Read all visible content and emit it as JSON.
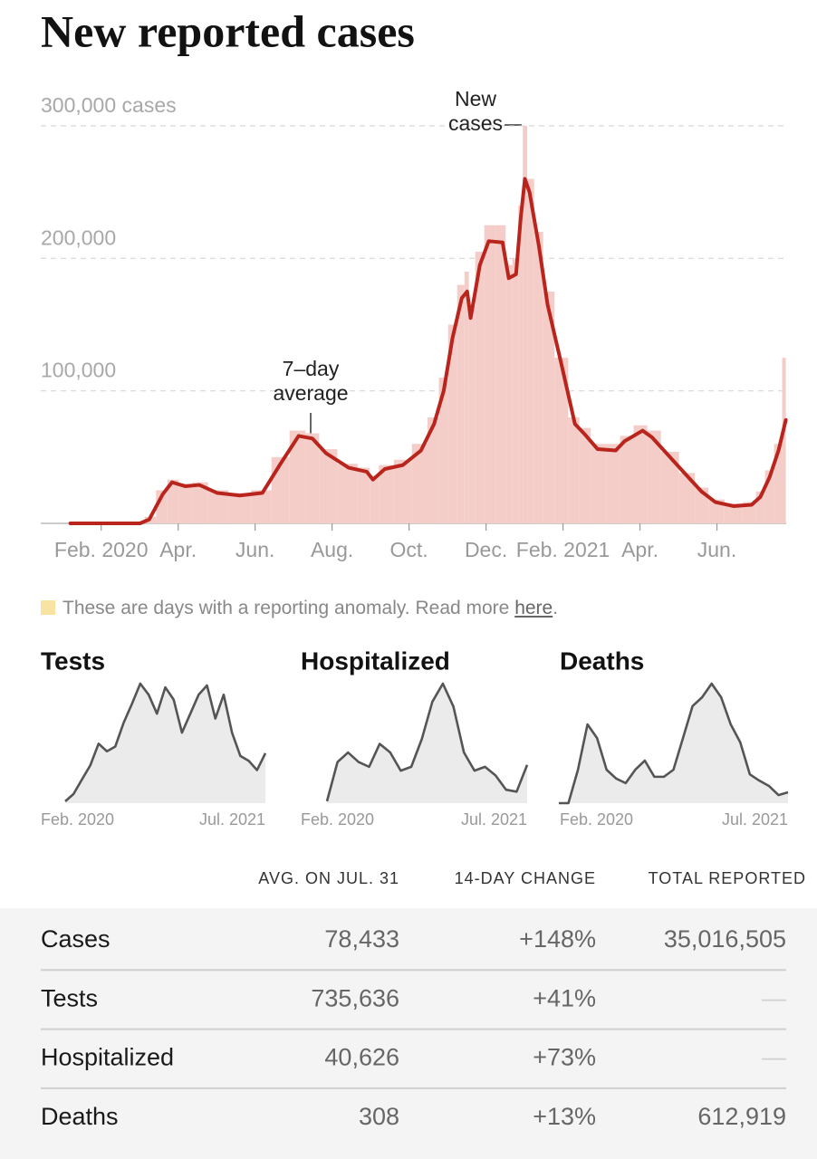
{
  "chart_data": [
    {
      "type": "combo",
      "title": "New reported cases",
      "x": [
        0.2,
        2.01,
        2.25,
        2.6,
        2.84,
        3.19,
        3.55,
        4.01,
        4.6,
        5.19,
        5.66,
        6.13,
        6.49,
        6.84,
        7.43,
        7.9,
        8.06,
        8.37,
        8.84,
        9.31,
        9.65,
        9.9,
        10.13,
        10.37,
        10.51,
        10.6,
        10.84,
        11.07,
        11.43,
        11.59,
        11.78,
        11.9,
        12.01,
        12.13,
        12.37,
        12.6,
        12.96,
        13.31,
        13.54,
        13.9,
        14.37,
        14.6,
        15.07,
        15.31,
        15.78,
        16.25,
        16.6,
        16.96,
        17.43,
        17.9,
        18.13,
        18.37,
        18.6,
        18.79
      ],
      "series": [
        {
          "name": "New cases",
          "type": "bar",
          "color": "#f4cdc9",
          "values": [
            0,
            0,
            5000,
            25000,
            33000,
            30000,
            31000,
            25000,
            23000,
            25000,
            50000,
            70000,
            68000,
            56000,
            45000,
            42000,
            36000,
            44000,
            48000,
            60000,
            80000,
            110000,
            150000,
            180000,
            190000,
            165000,
            205000,
            225000,
            225000,
            195000,
            200000,
            240000,
            300000,
            260000,
            220000,
            175000,
            125000,
            80000,
            72000,
            60000,
            60000,
            66000,
            74000,
            70000,
            54000,
            38000,
            27000,
            18000,
            15000,
            16000,
            24000,
            40000,
            60000,
            125000
          ]
        },
        {
          "name": "7–day average",
          "type": "line",
          "color": "#b9251c",
          "values": [
            0,
            0,
            3000,
            22000,
            31000,
            28000,
            29000,
            23000,
            21000,
            23000,
            45000,
            66000,
            64000,
            53000,
            42000,
            39000,
            33000,
            41000,
            44000,
            55000,
            75000,
            100000,
            140000,
            170000,
            175000,
            155000,
            195000,
            213000,
            212000,
            185000,
            188000,
            230000,
            260000,
            250000,
            210000,
            165000,
            120000,
            75000,
            68000,
            56000,
            55000,
            62000,
            70000,
            65000,
            50000,
            35000,
            24000,
            16000,
            13000,
            14000,
            20000,
            35000,
            55000,
            78000
          ]
        }
      ],
      "xlim": [
        -0.57,
        18.8
      ],
      "xticks": [
        {
          "value": 1,
          "label": "Feb. 2020"
        },
        {
          "value": 3,
          "label": "Apr."
        },
        {
          "value": 5,
          "label": "Jun."
        },
        {
          "value": 7,
          "label": "Aug."
        },
        {
          "value": 9,
          "label": "Oct."
        },
        {
          "value": 11,
          "label": "Dec."
        },
        {
          "value": 13,
          "label": "Feb. 2021"
        },
        {
          "value": 15,
          "label": "Apr."
        },
        {
          "value": 17,
          "label": "Jun."
        }
      ],
      "ylim": [
        0,
        300000
      ],
      "yticks": [
        {
          "value": 100000,
          "label": "100,000"
        },
        {
          "value": 200000,
          "label": "200,000"
        },
        {
          "value": 300000,
          "label": "300,000 cases"
        }
      ],
      "grid": true
    },
    {
      "type": "area",
      "title": "Tests",
      "color": "#555555",
      "x_labels": [
        "Feb. 2020",
        "Jul. 2021"
      ],
      "values": [
        30000,
        150000,
        385000,
        615000,
        970000,
        846000,
        923000,
        1310000,
        1620000,
        1950000,
        1770000,
        1460000,
        1890000,
        1690000,
        1150000,
        1460000,
        1770000,
        1920000,
        1380000,
        1770000,
        1150000,
        770000,
        690000,
        540000,
        815000
      ]
    },
    {
      "type": "area",
      "title": "Hospitalized",
      "color": "#555555",
      "x_labels": [
        "Feb. 2020",
        "Jul. 2021"
      ],
      "values": [
        2000,
        43000,
        53000,
        43000,
        38000,
        62000,
        53000,
        34000,
        38000,
        67000,
        106000,
        125000,
        101000,
        53000,
        34000,
        38000,
        29000,
        14000,
        12000,
        40000
      ]
    },
    {
      "type": "area",
      "title": "Deaths",
      "color": "#555555",
      "x_labels": [
        "Feb. 2020",
        "Jul. 2021"
      ],
      "values": [
        0,
        0,
        950,
        2240,
        1850,
        950,
        700,
        570,
        950,
        1210,
        750,
        750,
        950,
        1850,
        2760,
        3010,
        3400,
        3010,
        2240,
        1730,
        820,
        640,
        490,
        230,
        310
      ]
    }
  ],
  "anomaly_note": {
    "color": "#f8e3a3",
    "text": "These are days with a reporting anomaly. Read more ",
    "link": "here",
    "end": "."
  },
  "table": {
    "columns": [
      "AVG. ON JUL. 31",
      "14-DAY CHANGE",
      "TOTAL REPORTED"
    ],
    "rows": [
      {
        "label": "Cases",
        "cells": [
          "78,433",
          "+148%",
          "35,016,505"
        ]
      },
      {
        "label": "Tests",
        "cells": [
          "735,636",
          "+41%",
          "—"
        ]
      },
      {
        "label": "Hospitalized",
        "cells": [
          "40,626",
          "+73%",
          "—"
        ]
      },
      {
        "label": "Deaths",
        "cells": [
          "308",
          "+13%",
          "612,919"
        ]
      }
    ]
  }
}
